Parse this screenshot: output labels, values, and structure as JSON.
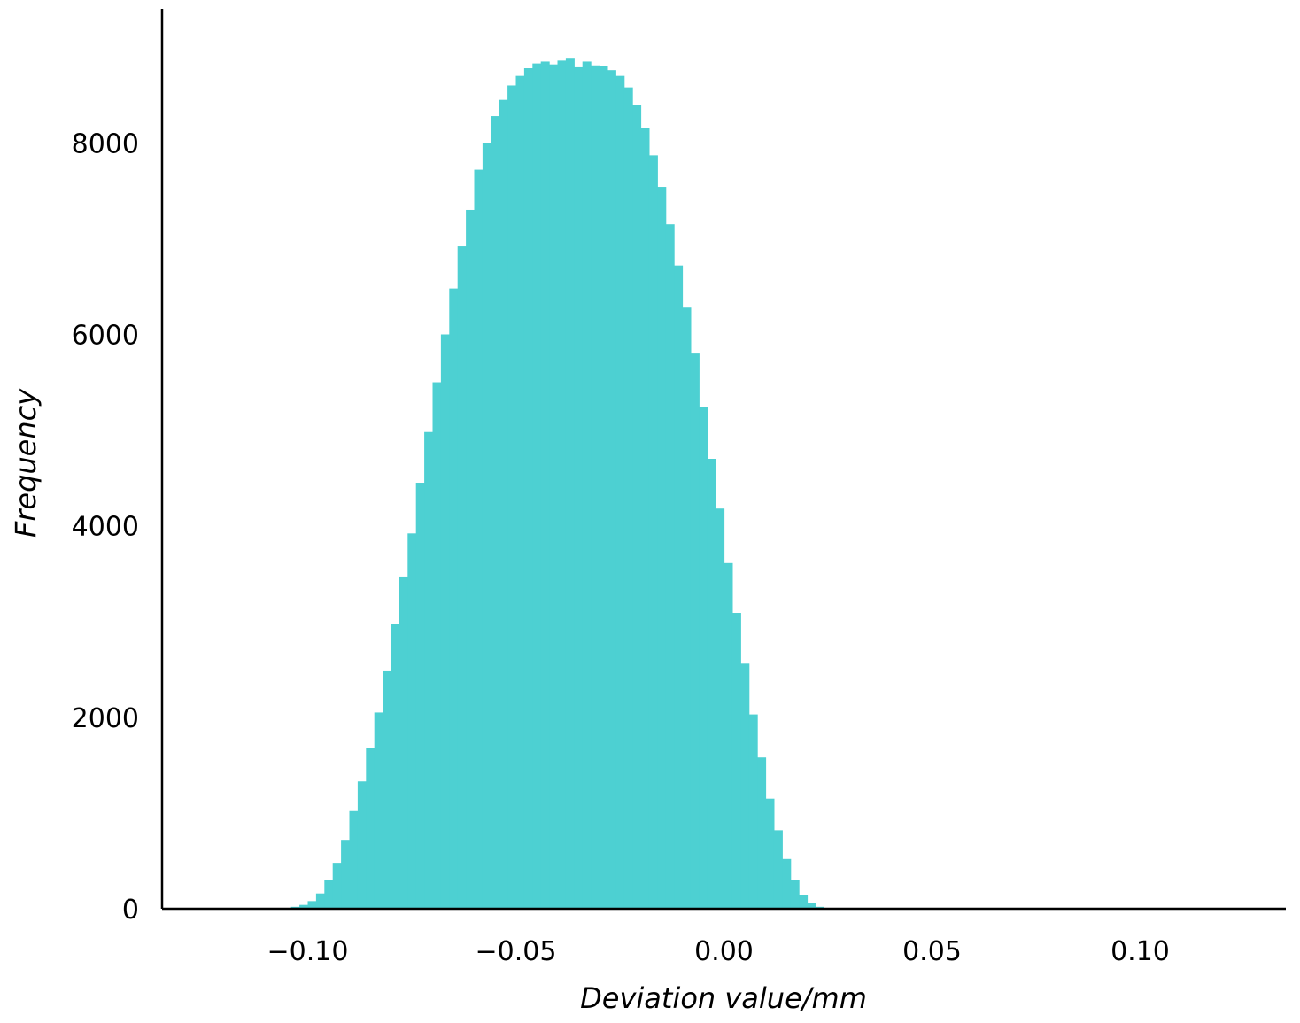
{
  "chart_data": {
    "type": "bar",
    "subtype": "histogram",
    "title": "",
    "xlabel": "Deviation value/mm",
    "ylabel": "Frequency",
    "xlim": [
      -0.135,
      0.135
    ],
    "ylim": [
      0,
      9400
    ],
    "xticks": [
      -0.1,
      -0.05,
      0.0,
      0.05,
      0.1
    ],
    "xtick_labels": [
      "−0.10",
      "−0.05",
      "0.00",
      "0.05",
      "0.10"
    ],
    "yticks": [
      0,
      2000,
      4000,
      6000,
      8000
    ],
    "ytick_labels": [
      "0",
      "2000",
      "4000",
      "6000",
      "8000"
    ],
    "grid": false,
    "bar_color": "#4dd0d2",
    "bin_width": 0.002,
    "bin_edges_start": -0.104,
    "frequencies": [
      20,
      40,
      80,
      160,
      300,
      480,
      720,
      1020,
      1330,
      1680,
      2050,
      2480,
      2970,
      3470,
      3920,
      4450,
      4980,
      5500,
      6000,
      6480,
      6920,
      7300,
      7720,
      8000,
      8280,
      8450,
      8600,
      8700,
      8780,
      8830,
      8850,
      8820,
      8860,
      8880,
      8790,
      8850,
      8810,
      8800,
      8760,
      8700,
      8580,
      8400,
      8160,
      7870,
      7540,
      7150,
      6720,
      6280,
      5800,
      5240,
      4700,
      4180,
      3610,
      3090,
      2560,
      2030,
      1580,
      1150,
      820,
      520,
      300,
      140,
      60,
      20
    ]
  }
}
